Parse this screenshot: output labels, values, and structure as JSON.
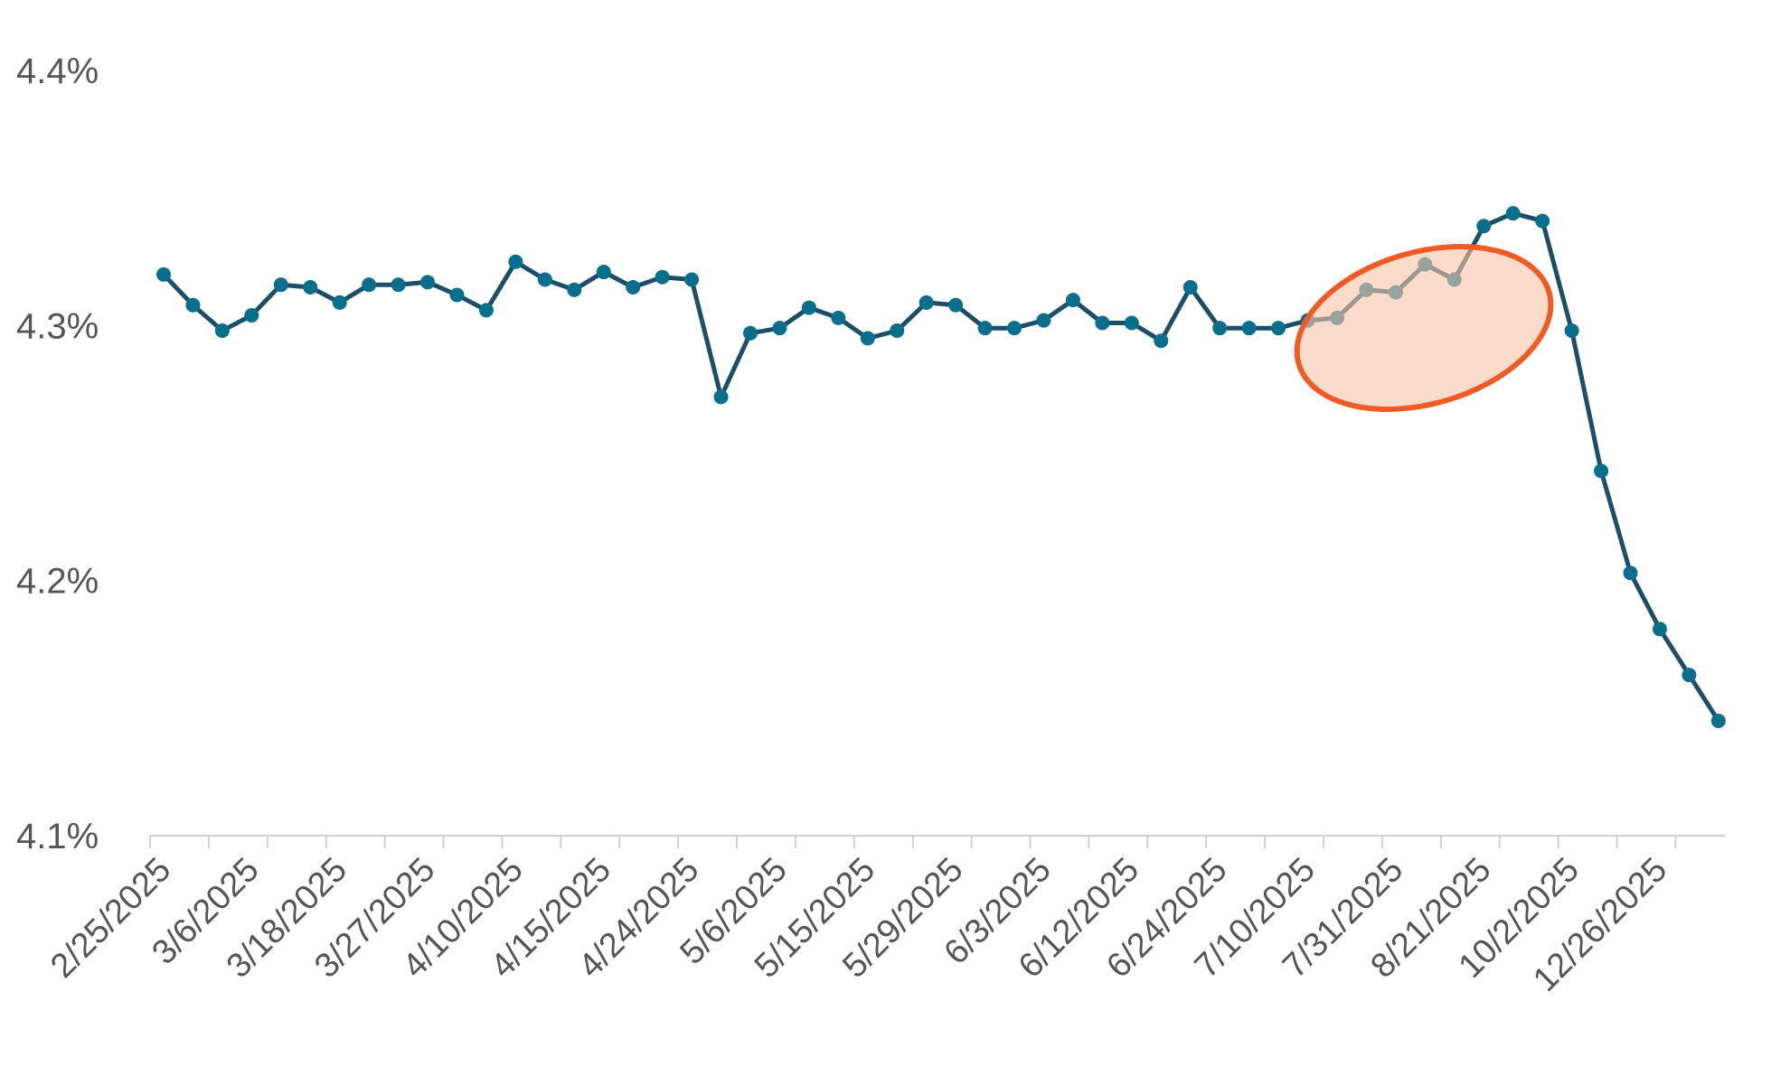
{
  "chart_data": {
    "type": "line",
    "title": "",
    "xlabel": "",
    "ylabel": "",
    "ylim": [
      4.1,
      4.4
    ],
    "y_ticks": [
      "4.1%",
      "4.2%",
      "4.3%",
      "4.4%"
    ],
    "y_tick_values": [
      4.1,
      4.2,
      4.3,
      4.4
    ],
    "x_tick_labels": [
      "2/25/2025",
      "3/6/2025",
      "3/18/2025",
      "3/27/2025",
      "4/10/2025",
      "4/15/2025",
      "4/24/2025",
      "5/6/2025",
      "5/15/2025",
      "5/29/2025",
      "6/3/2025",
      "6/12/2025",
      "6/24/2025",
      "7/10/2025",
      "7/31/2025",
      "8/21/2025",
      "10/2/2025",
      "12/26/2025"
    ],
    "x_tick_every": 3,
    "grid": false,
    "legend": "none",
    "series": [
      {
        "values": [
          4.32,
          4.308,
          4.298,
          4.304,
          4.316,
          4.315,
          4.309,
          4.316,
          4.316,
          4.317,
          4.312,
          4.306,
          4.325,
          4.318,
          4.314,
          4.321,
          4.315,
          4.319,
          4.318,
          4.272,
          4.297,
          4.299,
          4.307,
          4.303,
          4.295,
          4.298,
          4.309,
          4.308,
          4.299,
          4.299,
          4.302,
          4.31,
          4.301,
          4.301,
          4.294,
          4.315,
          4.299,
          4.299,
          4.299,
          4.302,
          4.303,
          4.314,
          4.313,
          4.324,
          4.318,
          4.339,
          4.344,
          4.341,
          4.298,
          4.243,
          4.203,
          4.181,
          4.163,
          4.145
        ]
      }
    ],
    "annotations": [
      {
        "shape": "ellipse",
        "highlight_range": [
          "7/31/2025",
          "10/2/2025"
        ]
      }
    ],
    "colors": {
      "line": "#1d4e68",
      "marker": "#0a6f8c",
      "axis": "#d0d0d0",
      "tick_text": "#555555",
      "highlight_fill": "#f9c4a9",
      "highlight_stroke": "#f05a24"
    }
  }
}
